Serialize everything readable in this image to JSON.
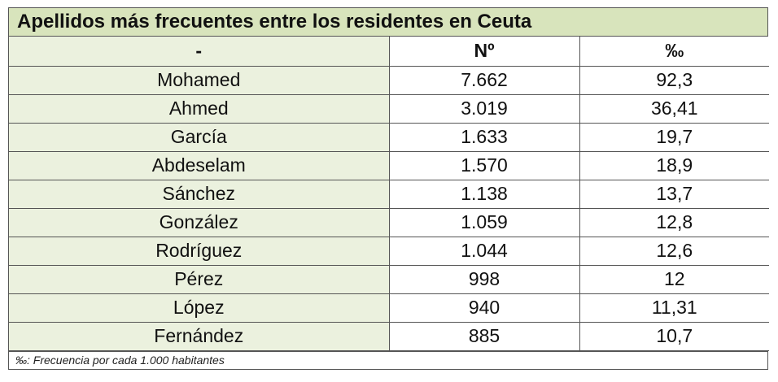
{
  "title": "Apellidos más frecuentes entre los residentes en Ceuta",
  "headers": [
    "-",
    "Nº",
    "‰"
  ],
  "rows": [
    [
      "Mohamed",
      "7.662",
      "92,3"
    ],
    [
      "Ahmed",
      "3.019",
      "36,41"
    ],
    [
      "García",
      "1.633",
      "19,7"
    ],
    [
      "Abdeselam",
      "1.570",
      "18,9"
    ],
    [
      "Sánchez",
      "1.138",
      "13,7"
    ],
    [
      "González",
      "1.059",
      "12,8"
    ],
    [
      "Rodríguez",
      "1.044",
      "12,6"
    ],
    [
      "Pérez",
      "998",
      "12"
    ],
    [
      "López",
      "940",
      "11,31"
    ],
    [
      "Fernández",
      "885",
      "10,7"
    ]
  ],
  "footnote": "‰: Frecuencia por cada 1.000 habitantes",
  "colors": {
    "header_fill": "#d8e4bc",
    "name_fill": "#ebf1de",
    "border": "#555555"
  }
}
